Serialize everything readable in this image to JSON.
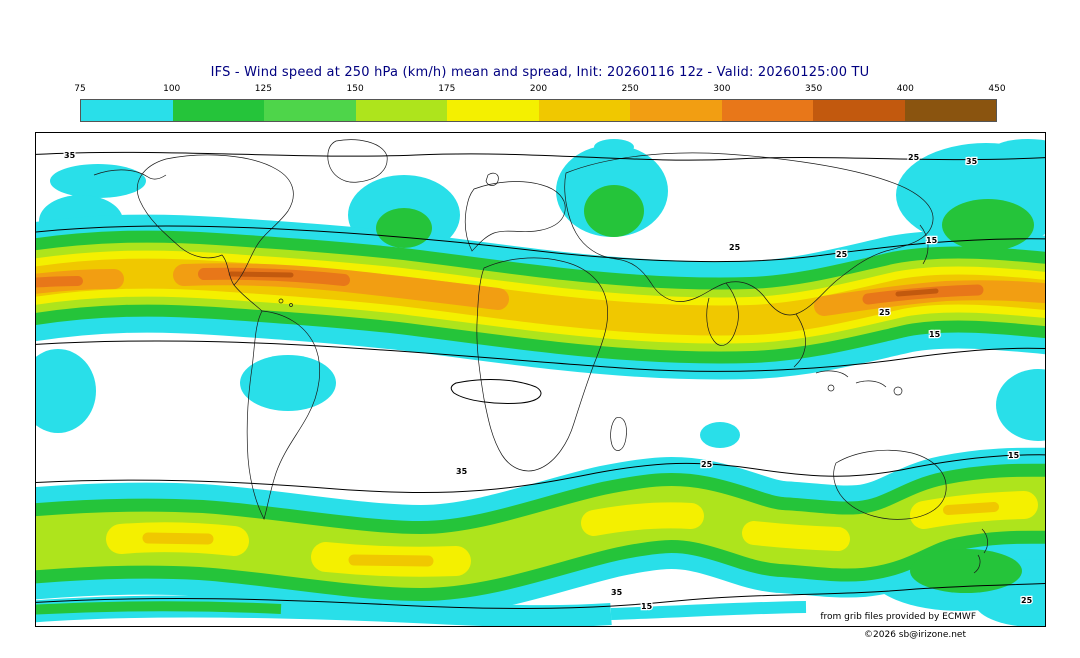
{
  "title": "IFS - Wind speed at 250 hPa (km/h) mean and spread, Init: 20260116 12z - Valid: 20260125:00 TU",
  "colorbar": {
    "tick_labels": [
      "75",
      "100",
      "125",
      "150",
      "175",
      "200",
      "250",
      "300",
      "350",
      "400",
      "450"
    ],
    "colors": [
      "#29dfe9",
      "#25c43a",
      "#4ed54a",
      "#aee41c",
      "#f4f000",
      "#f0c800",
      "#f29e12",
      "#e87719",
      "#c2590e",
      "#8a540f"
    ]
  },
  "map": {
    "labels": {
      "v15": "15",
      "v25": "25",
      "v35": "35"
    }
  },
  "footer": {
    "line1": "from grib files provided by ECMWF",
    "line2": "©2026 sb@irizone.net"
  },
  "chart_data": {
    "type": "heatmap",
    "projection": "equirectangular world map with filled contours over coastlines",
    "title": "IFS - Wind speed at 250 hPa (km/h) mean and spread, Init: 20260116 12z - Valid: 20260125:00 TU",
    "model": "IFS",
    "variable": "Wind speed at 250 hPa, ensemble mean (color fill) and spread (black contour lines)",
    "units": "km/h",
    "init": "20260116 12z",
    "valid": "20260125:00 TU",
    "fill_levels": [
      75,
      100,
      125,
      150,
      175,
      200,
      250,
      300,
      350,
      400,
      450
    ],
    "fill_colors": [
      "#29dfe9",
      "#25c43a",
      "#4ed54a",
      "#aee41c",
      "#f4f000",
      "#f0c800",
      "#f29e12",
      "#e87719",
      "#c2590e",
      "#8a540f"
    ],
    "spread_contour_levels": [
      15,
      25,
      35
    ],
    "legend_position": "top horizontal colorbar",
    "features": [
      {
        "name": "northern-hemisphere-jet",
        "description": "Continuous wavy jet band across northern mid-latitudes; orange cores 250-350 km/h over eastern North America/Atlantic, near the left map edge and over the North Pacific at the right; yellow-gold 175-250 km/h band over Eurasia."
      },
      {
        "name": "southern-hemisphere-jet",
        "description": "Continuous band 100-200 km/h across southern mid-latitudes with several yellow 175-200 km/h cores."
      },
      {
        "name": "high-latitude-patches",
        "description": "Isolated cyan 75-100 km/h patches at high northern latitudes and a thin cyan/green strip along the bottom (Antarctic) edge."
      }
    ],
    "source_note": "from grib files provided by ECMWF",
    "copyright": "©2026 sb@irizone.net"
  }
}
